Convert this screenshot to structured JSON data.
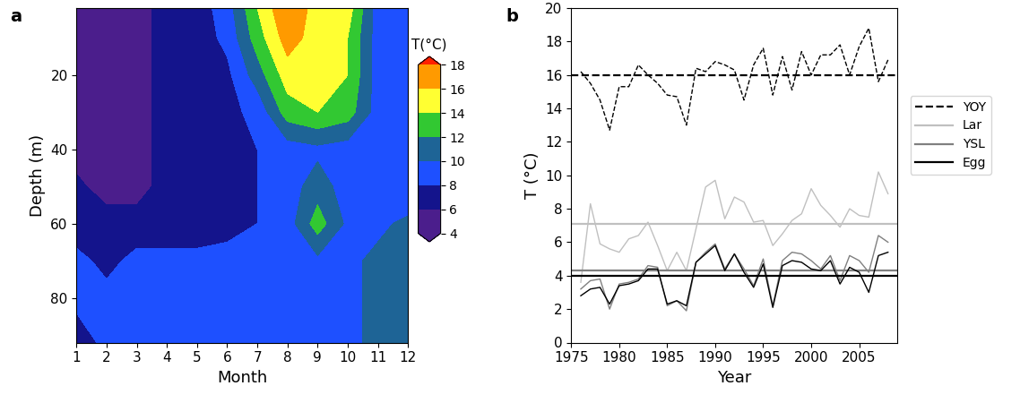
{
  "chart_data": [
    {
      "type": "contour",
      "title": "a",
      "x_label": "Month",
      "y_label": "Depth (m)",
      "x": [
        1,
        2,
        3,
        4,
        5,
        6,
        7,
        8,
        9,
        10,
        11,
        12
      ],
      "y": [
        2,
        10,
        20,
        30,
        40,
        50,
        60,
        70,
        80,
        92
      ],
      "cells": [
        [
          5,
          5,
          5,
          7,
          7,
          9,
          14,
          18,
          15,
          15,
          9,
          8
        ],
        [
          5,
          5,
          5,
          7,
          7,
          8.5,
          13,
          17,
          15,
          14,
          9,
          8
        ],
        [
          5,
          5,
          5,
          7,
          7,
          7.5,
          11,
          15,
          16,
          14,
          9,
          8
        ],
        [
          5,
          5,
          5,
          7,
          7,
          7.5,
          8.5,
          13,
          14,
          13,
          9,
          8
        ],
        [
          5,
          5,
          5,
          7,
          7,
          7.5,
          8,
          9,
          9.5,
          9,
          9,
          8
        ],
        [
          6.5,
          5,
          5,
          7,
          7,
          7.5,
          8,
          9,
          11,
          9,
          9,
          8
        ],
        [
          7,
          7,
          7,
          7,
          7,
          7.5,
          8,
          9,
          13,
          9.5,
          9.5,
          10.5
        ],
        [
          8.5,
          7.5,
          8.5,
          8.5,
          8.5,
          8.5,
          8.5,
          8.5,
          9.5,
          9.5,
          10.5,
          11
        ],
        [
          8.5,
          8.5,
          8.5,
          8.5,
          8.5,
          8.5,
          8.5,
          8.5,
          9,
          9.5,
          10.5,
          11
        ],
        [
          7,
          8.5,
          8.5,
          8.5,
          8.5,
          8.5,
          8.5,
          8.5,
          9,
          9.5,
          10.5,
          11
        ]
      ],
      "xlim": [
        1,
        12
      ],
      "xticks": [
        1,
        2,
        3,
        4,
        5,
        6,
        7,
        8,
        9,
        10,
        11,
        12
      ],
      "ylim": [
        92,
        2
      ],
      "yticks": [
        20,
        40,
        60,
        80
      ],
      "colorbar_label": "T(°C)",
      "colorbar_ticks": [
        4,
        6,
        8,
        10,
        12,
        14,
        16,
        18
      ],
      "colors": [
        "#4b1e8c",
        "#14148c",
        "#1e50ff",
        "#1e6496",
        "#32c832",
        "#ffff32",
        "#ff9a00",
        "#ff2000"
      ]
    },
    {
      "type": "line",
      "title": "b",
      "x_label": "Year",
      "y_label": "T (°C)",
      "x": [
        1976,
        1977,
        1978,
        1979,
        1980,
        1981,
        1982,
        1983,
        1984,
        1985,
        1986,
        1987,
        1988,
        1989,
        1990,
        1991,
        1992,
        1993,
        1994,
        1995,
        1996,
        1997,
        1998,
        1999,
        2000,
        2001,
        2002,
        2003,
        2004,
        2005,
        2006,
        2007,
        2008
      ],
      "series": [
        {
          "name": "YOY",
          "color": "#000000",
          "line_style": "dashed",
          "mean": 16.0,
          "values": [
            16.2,
            15.5,
            14.5,
            12.7,
            15.3,
            15.3,
            16.6,
            16.0,
            15.5,
            14.8,
            14.7,
            13.0,
            16.4,
            16.2,
            16.8,
            16.6,
            16.3,
            14.5,
            16.6,
            17.6,
            14.8,
            17.1,
            15.1,
            17.4,
            16.0,
            17.2,
            17.2,
            17.8,
            16.0,
            17.7,
            18.8,
            15.6,
            16.9
          ]
        },
        {
          "name": "Lar",
          "color": "#c0c0c0",
          "line_style": "solid",
          "mean": 7.1,
          "values": [
            3.6,
            8.3,
            5.9,
            5.6,
            5.4,
            6.2,
            6.4,
            7.2,
            5.8,
            4.3,
            5.4,
            4.3,
            6.8,
            9.3,
            9.7,
            7.4,
            8.7,
            8.4,
            7.2,
            7.3,
            5.8,
            6.5,
            7.3,
            7.7,
            9.2,
            8.2,
            7.6,
            6.9,
            8.0,
            7.6,
            7.5,
            10.2,
            8.9
          ]
        },
        {
          "name": "YSL",
          "color": "#808080",
          "line_style": "solid",
          "mean": 4.3,
          "values": [
            3.2,
            3.7,
            3.8,
            2.0,
            3.5,
            3.6,
            3.8,
            4.6,
            4.5,
            2.2,
            2.5,
            1.9,
            4.8,
            5.4,
            5.9,
            4.4,
            5.3,
            4.4,
            3.4,
            5.0,
            2.2,
            4.9,
            5.4,
            5.3,
            4.9,
            4.4,
            5.2,
            3.7,
            5.2,
            4.9,
            4.2,
            6.4,
            6.0
          ]
        },
        {
          "name": "Egg",
          "color": "#000000",
          "line_style": "solid",
          "mean": 4.0,
          "values": [
            2.8,
            3.2,
            3.3,
            2.3,
            3.4,
            3.5,
            3.7,
            4.4,
            4.4,
            2.3,
            2.5,
            2.2,
            4.8,
            5.3,
            5.8,
            4.3,
            5.3,
            4.2,
            3.3,
            4.7,
            2.1,
            4.6,
            4.9,
            4.8,
            4.4,
            4.3,
            4.9,
            3.5,
            4.5,
            4.2,
            3.0,
            5.2,
            5.4
          ]
        }
      ],
      "xlim": [
        1975,
        2009
      ],
      "xticks": [
        1975,
        1980,
        1985,
        1990,
        1995,
        2000,
        2005
      ],
      "ylim": [
        0,
        20
      ],
      "yticks": [
        0,
        2,
        4,
        6,
        8,
        10,
        12,
        14,
        16,
        18,
        20
      ],
      "legend": "right"
    }
  ]
}
